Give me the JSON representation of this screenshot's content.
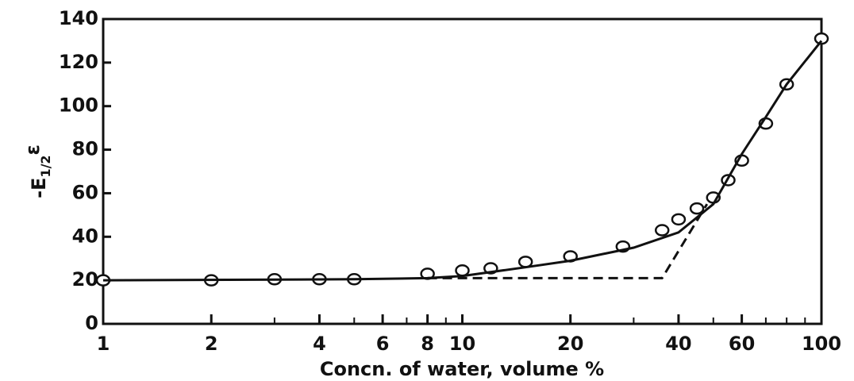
{
  "chart_data": {
    "type": "line",
    "xlabel": "Concn. of  water, volume %",
    "ylabel": {
      "main": "-E",
      "sub": "1/2",
      "suffix": "ε"
    },
    "xscale": "log",
    "xlim": [
      1,
      100
    ],
    "ylim": [
      0,
      140
    ],
    "xticks": [
      1,
      2,
      4,
      6,
      8,
      10,
      20,
      40,
      60,
      100
    ],
    "xminorticks": [
      3,
      5,
      7,
      9,
      30,
      50,
      70,
      80,
      90
    ],
    "yticks": [
      0,
      20,
      40,
      60,
      80,
      100,
      120,
      140
    ],
    "color": "#111111",
    "series": [
      {
        "style": "markers",
        "x": [
          1,
          2,
          3,
          4,
          5,
          8,
          10,
          12,
          15,
          20,
          28,
          36,
          40,
          45,
          50,
          55,
          60,
          70,
          80,
          100
        ],
        "values": [
          20,
          20,
          20.5,
          20.5,
          20.5,
          23,
          24.5,
          25.5,
          28.5,
          31,
          35.5,
          43,
          48,
          53,
          58,
          66,
          75,
          92,
          110,
          131
        ]
      },
      {
        "style": "solid",
        "x": [
          1,
          5,
          8,
          10,
          15,
          20,
          30,
          40,
          50,
          60,
          70,
          80,
          100
        ],
        "values": [
          20,
          20.5,
          21,
          22,
          26,
          29,
          35,
          42,
          55,
          78,
          95,
          110,
          130
        ]
      },
      {
        "style": "dashed",
        "x": [
          8,
          36,
          48
        ],
        "values": [
          21,
          21,
          55
        ]
      }
    ]
  }
}
